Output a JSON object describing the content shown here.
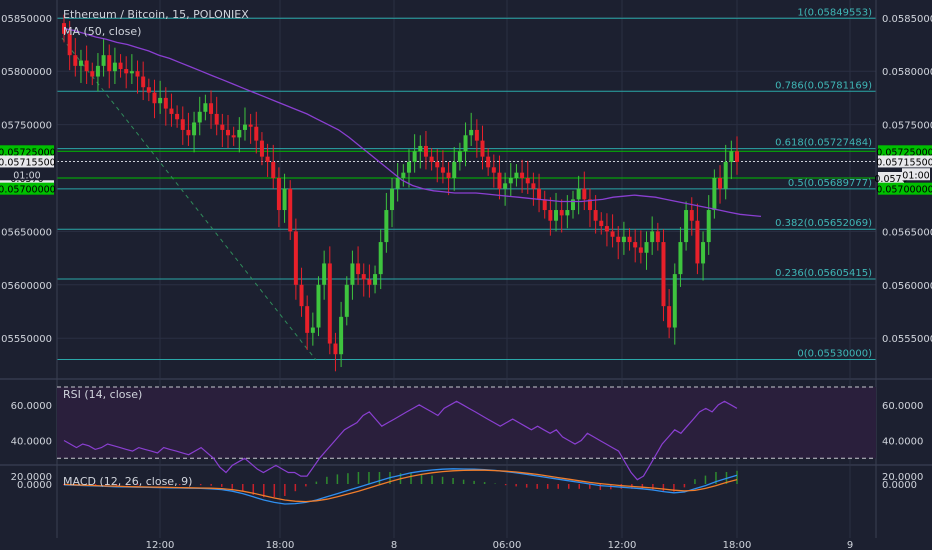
{
  "header": {
    "title": "Ethereum / Bitcoin, 15, POLONIEX",
    "ma_legend": "MA (50, close)",
    "rsi_legend": "RSI (14, close)",
    "macd_legend": "MACD (12, 26, close, 9)"
  },
  "colors": {
    "background": "#1c2030",
    "grid": "#2a2f42",
    "axis_text": "#d0d4dc",
    "up_candle": "#3ec43e",
    "down_candle": "#e8202a",
    "ma_line": "#8a3fd1",
    "fib_line": "#2aa7a8",
    "fib_label": "#3fb6b6",
    "rsi_line": "#8a3fd1",
    "rsi_band": "#2a1f3c",
    "macd_line": "#2f8ff0",
    "signal_line": "#f07d2b",
    "hist_pos": "#2f8b2f",
    "hist_neg": "#c8202a",
    "trend_line": "#2f8b5a",
    "green_tag": "#00c000"
  },
  "chart_data": {
    "type": "candlestick",
    "x_ticks": [
      "12:00",
      "18:00",
      "8",
      "06:00",
      "12:00",
      "18:00",
      "9"
    ],
    "y_ticks": [
      "0.05850000",
      "0.05800000",
      "0.05750000",
      "0.05650000",
      "0.05600000",
      "0.05550000"
    ],
    "price_tags": [
      {
        "label": "0.05725000",
        "value": 0.05725,
        "style": "green"
      },
      {
        "label": "0.05715500",
        "value": 0.057155,
        "style": "white"
      },
      {
        "label": "0.0570",
        "value": 0.057,
        "style": "white-partial"
      },
      {
        "label": "01:00",
        "value": 0.057035,
        "style": "time"
      },
      {
        "label": "0.05700000",
        "value": 0.0569,
        "style": "green"
      }
    ],
    "fibonacci": [
      {
        "ratio": "1",
        "value": 0.05849553,
        "label": "1(0.05849553)"
      },
      {
        "ratio": "0.786",
        "value": 0.05781169,
        "label": "0.786(0.05781169)"
      },
      {
        "ratio": "0.618",
        "value": 0.05727484,
        "label": "0.618(0.05727484)"
      },
      {
        "ratio": "0.5",
        "value": 0.05689777,
        "label": "0.5(0.05689777)"
      },
      {
        "ratio": "0.382",
        "value": 0.05652069,
        "label": "0.382(0.05652069)"
      },
      {
        "ratio": "0.236",
        "value": 0.05605415,
        "label": "0.236(0.05605415)"
      },
      {
        "ratio": "0",
        "value": 0.0553,
        "label": "0(0.05530000)"
      }
    ],
    "horizontal_levels": [
      0.05725,
      0.057155,
      0.057
    ],
    "closes": [
      0.05835,
      0.05815,
      0.05805,
      0.0581,
      0.058,
      0.05795,
      0.05805,
      0.05815,
      0.058,
      0.05808,
      0.05802,
      0.05798,
      0.058,
      0.05795,
      0.05785,
      0.0578,
      0.0577,
      0.05775,
      0.05765,
      0.0576,
      0.05755,
      0.05745,
      0.0574,
      0.05752,
      0.05762,
      0.0577,
      0.0576,
      0.0575,
      0.05745,
      0.0574,
      0.05738,
      0.05745,
      0.0575,
      0.05748,
      0.05735,
      0.0572,
      0.05715,
      0.057,
      0.0567,
      0.0569,
      0.0565,
      0.056,
      0.0558,
      0.05555,
      0.0556,
      0.056,
      0.0562,
      0.05545,
      0.05535,
      0.0557,
      0.056,
      0.0562,
      0.0561,
      0.05605,
      0.056,
      0.0561,
      0.0564,
      0.0567,
      0.0569,
      0.057,
      0.05705,
      0.05715,
      0.05725,
      0.0573,
      0.0572,
      0.05715,
      0.0571,
      0.05705,
      0.057,
      0.05715,
      0.05725,
      0.0574,
      0.05745,
      0.05735,
      0.0572,
      0.0571,
      0.05705,
      0.0569,
      0.05695,
      0.057,
      0.05705,
      0.057,
      0.05695,
      0.0569,
      0.0568,
      0.0567,
      0.0566,
      0.0567,
      0.05665,
      0.0567,
      0.0568,
      0.0569,
      0.0568,
      0.0567,
      0.0566,
      0.05655,
      0.0565,
      0.05645,
      0.0564,
      0.05645,
      0.0564,
      0.05635,
      0.0563,
      0.0564,
      0.0565,
      0.0564,
      0.0558,
      0.0556,
      0.0561,
      0.0564,
      0.0567,
      0.0566,
      0.0562,
      0.0564,
      0.0567,
      0.057,
      0.0569,
      0.05715,
      0.05725,
      0.05715
    ],
    "ma_50": [
      0.0584,
      0.05838,
      0.05835,
      0.05832,
      0.0583,
      0.05827,
      0.05825,
      0.05822,
      0.05819,
      0.05815,
      0.05812,
      0.05808,
      0.05804,
      0.058,
      0.05796,
      0.05792,
      0.05788,
      0.05784,
      0.0578,
      0.05776,
      0.05772,
      0.05768,
      0.05764,
      0.0576,
      0.05755,
      0.0575,
      0.05745,
      0.05738,
      0.0573,
      0.05722,
      0.05714,
      0.05706,
      0.05698,
      0.05693,
      0.0569,
      0.05688,
      0.05687,
      0.05686,
      0.05686,
      0.05686,
      0.05685,
      0.05684,
      0.05683,
      0.05682,
      0.05681,
      0.0568,
      0.05679,
      0.05678,
      0.05678,
      0.05678,
      0.05679,
      0.0568,
      0.05682,
      0.05683,
      0.05684,
      0.05683,
      0.05682,
      0.0568,
      0.05678,
      0.05676,
      0.05674,
      0.05672,
      0.0567,
      0.05668,
      0.05666,
      0.05665,
      0.05664
    ],
    "rsi_ticks": [
      "60.0000",
      "40.0000",
      "20.0000"
    ],
    "rsi_range": [
      15,
      70
    ],
    "rsi_bands": [
      70,
      30
    ],
    "rsi": [
      40,
      38,
      36,
      38,
      37,
      35,
      36,
      38,
      37,
      36,
      35,
      34,
      36,
      35,
      34,
      33,
      36,
      35,
      34,
      33,
      32,
      34,
      36,
      33,
      30,
      25,
      22,
      26,
      28,
      30,
      27,
      24,
      22,
      24,
      26,
      24,
      22,
      22,
      20,
      20,
      25,
      30,
      34,
      38,
      42,
      46,
      48,
      50,
      54,
      56,
      52,
      48,
      50,
      52,
      54,
      56,
      58,
      60,
      58,
      56,
      54,
      58,
      60,
      62,
      60,
      58,
      56,
      54,
      52,
      50,
      48,
      50,
      52,
      50,
      48,
      46,
      48,
      46,
      44,
      46,
      42,
      40,
      38,
      40,
      44,
      42,
      40,
      38,
      36,
      34,
      28,
      22,
      18,
      20,
      26,
      32,
      38,
      42,
      46,
      44,
      48,
      52,
      56,
      58,
      56,
      60,
      62,
      60,
      58
    ],
    "macd_tick": "0.0000",
    "macd": [
      -0.1,
      -0.15,
      -0.2,
      -0.25,
      -0.3,
      -0.35,
      -0.38,
      -0.4,
      -0.42,
      -0.45,
      -0.48,
      -0.5,
      -0.52,
      -0.55,
      -0.6,
      -0.7,
      -0.9,
      -1.2,
      -1.6,
      -2.0,
      -2.3,
      -2.5,
      -2.45,
      -2.3,
      -2.0,
      -1.6,
      -1.2,
      -0.8,
      -0.4,
      0.0,
      0.4,
      0.8,
      1.1,
      1.4,
      1.6,
      1.75,
      1.85,
      1.9,
      1.88,
      1.85,
      1.8,
      1.7,
      1.55,
      1.4,
      1.2,
      1.0,
      0.8,
      0.6,
      0.4,
      0.2,
      0.0,
      -0.2,
      -0.3,
      -0.4,
      -0.5,
      -0.6,
      -0.75,
      -0.95,
      -1.1,
      -1.0,
      -0.6,
      -0.2,
      0.3,
      0.7,
      1.1
    ],
    "signal": [
      -0.05,
      -0.1,
      -0.15,
      -0.2,
      -0.25,
      -0.28,
      -0.32,
      -0.35,
      -0.38,
      -0.4,
      -0.43,
      -0.45,
      -0.47,
      -0.5,
      -0.53,
      -0.58,
      -0.7,
      -0.9,
      -1.15,
      -1.45,
      -1.75,
      -2.0,
      -2.15,
      -2.2,
      -2.1,
      -1.9,
      -1.6,
      -1.25,
      -0.9,
      -0.5,
      -0.1,
      0.3,
      0.65,
      0.95,
      1.2,
      1.4,
      1.55,
      1.65,
      1.7,
      1.72,
      1.72,
      1.68,
      1.6,
      1.5,
      1.35,
      1.2,
      1.0,
      0.8,
      0.6,
      0.4,
      0.2,
      0.05,
      -0.08,
      -0.2,
      -0.3,
      -0.4,
      -0.5,
      -0.62,
      -0.78,
      -0.86,
      -0.8,
      -0.55,
      -0.2,
      0.2,
      0.55
    ]
  }
}
